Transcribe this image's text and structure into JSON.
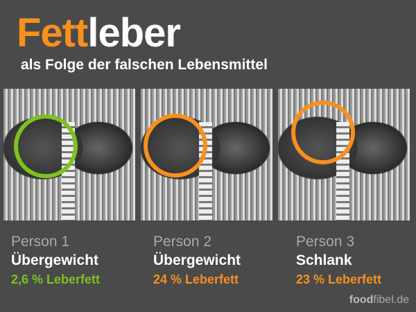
{
  "title": {
    "highlight": "Fett",
    "rest": "leber"
  },
  "subtitle": "als Folge der falschen Lebensmittel",
  "colors": {
    "background": "#4a4a4a",
    "orange": "#f7901e",
    "green": "#7dc21e"
  },
  "persons": [
    {
      "name": "Person 1",
      "type": "Übergewicht",
      "fat": "2,6 % Leberfett",
      "ring_color": "#7dc21e"
    },
    {
      "name": "Person 2",
      "type": "Übergewicht",
      "fat": "24 % Leberfett",
      "ring_color": "#f7901e"
    },
    {
      "name": "Person 3",
      "type": "Schlank",
      "fat": "23 % Leberfett",
      "ring_color": "#f7901e"
    }
  ],
  "brand": {
    "bold": "food",
    "rest": "fibel.de"
  }
}
